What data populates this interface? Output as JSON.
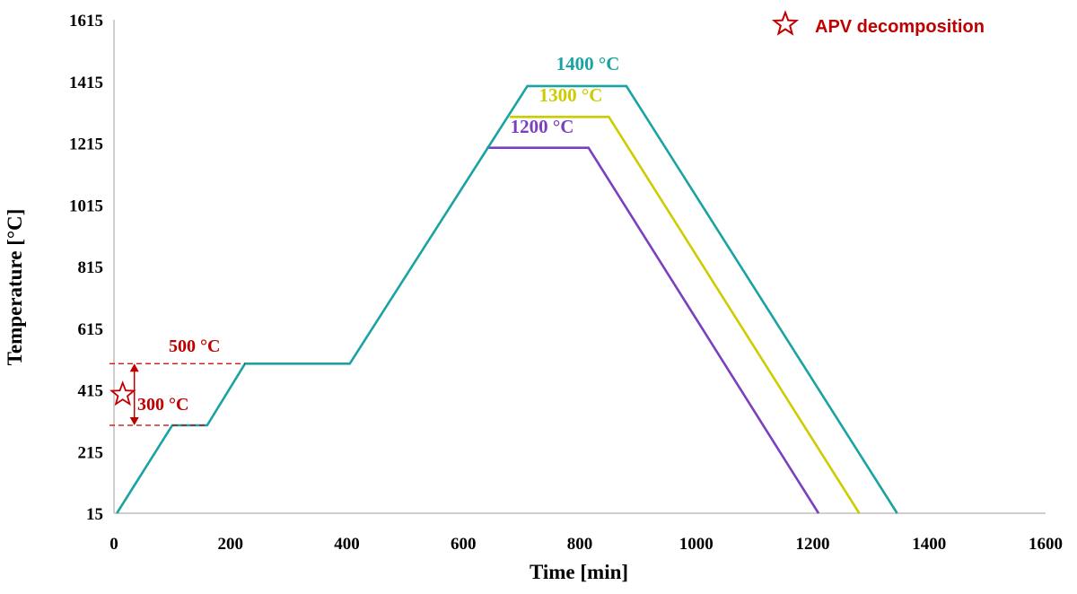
{
  "chart_data": {
    "type": "line",
    "xlabel": "Time [min]",
    "ylabel": "Temperature [°C]",
    "xlim": [
      0,
      1600
    ],
    "ylim": [
      15,
      1615
    ],
    "x_ticks": [
      0,
      200,
      400,
      600,
      800,
      1000,
      1200,
      1400,
      1600
    ],
    "y_ticks": [
      15,
      215,
      415,
      615,
      815,
      1015,
      1215,
      1415,
      1615
    ],
    "grid": false,
    "series": [
      {
        "name": "1400 °C",
        "color": "#1ba3a3",
        "points": [
          [
            5,
            15
          ],
          [
            100,
            300
          ],
          [
            160,
            300
          ],
          [
            225,
            500
          ],
          [
            405,
            500
          ],
          [
            710,
            1400
          ],
          [
            880,
            1400
          ],
          [
            1345,
            15
          ]
        ]
      },
      {
        "name": "1300 °C",
        "color": "#cccc00",
        "points": [
          [
            680,
            1300
          ],
          [
            850,
            1300
          ],
          [
            1280,
            15
          ]
        ]
      },
      {
        "name": "1200 °C",
        "color": "#7b3fbf",
        "points": [
          [
            640,
            1200
          ],
          [
            815,
            1200
          ],
          [
            1210,
            15
          ]
        ]
      }
    ],
    "annotations": {
      "upper_limit_label": "500 °C",
      "lower_limit_label": "300 °C",
      "upper_value": 500,
      "lower_value": 300,
      "range_x_end": 225,
      "arrow_x": 35,
      "star_x": 15,
      "star_y": 400,
      "color": "#c00000"
    },
    "legend": {
      "label": "APV decomposition",
      "symbol": "star-icon",
      "position": "top-right"
    }
  }
}
